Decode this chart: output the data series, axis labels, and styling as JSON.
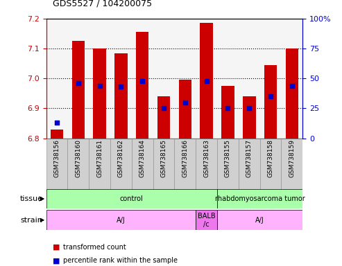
{
  "title": "GDS5527 / 104200075",
  "samples": [
    "GSM738156",
    "GSM738160",
    "GSM738161",
    "GSM738162",
    "GSM738164",
    "GSM738165",
    "GSM738166",
    "GSM738163",
    "GSM738155",
    "GSM738157",
    "GSM738158",
    "GSM738159"
  ],
  "transformed_count": [
    6.83,
    7.125,
    7.1,
    7.085,
    7.155,
    6.94,
    6.995,
    7.185,
    6.975,
    6.94,
    7.045,
    7.1
  ],
  "percentile_rank": [
    13,
    46,
    44,
    43,
    48,
    25,
    30,
    48,
    25,
    25,
    35,
    44
  ],
  "bar_bottom": 6.8,
  "ylim_left": [
    6.8,
    7.2
  ],
  "ylim_right": [
    0,
    100
  ],
  "yticks_left": [
    6.8,
    6.9,
    7.0,
    7.1,
    7.2
  ],
  "yticks_right": [
    0,
    25,
    50,
    75,
    100
  ],
  "bar_color": "#cc0000",
  "dot_color": "#0000cc",
  "tissue_groups": [
    {
      "label": "control",
      "start": 0,
      "end": 8,
      "color": "#aaffaa"
    },
    {
      "label": "rhabdomyosarcoma tumor",
      "start": 8,
      "end": 12,
      "color": "#aaffaa"
    }
  ],
  "strain_groups": [
    {
      "label": "A/J",
      "start": 0,
      "end": 7,
      "color": "#ffb3ff"
    },
    {
      "label": "BALB\n/c",
      "start": 7,
      "end": 8,
      "color": "#ee77ee"
    },
    {
      "label": "A/J",
      "start": 8,
      "end": 12,
      "color": "#ffb3ff"
    }
  ],
  "legend_items": [
    {
      "label": "transformed count",
      "color": "#cc0000"
    },
    {
      "label": "percentile rank within the sample",
      "color": "#0000cc"
    }
  ],
  "gridline_ticks": [
    6.9,
    7.0,
    7.1
  ]
}
